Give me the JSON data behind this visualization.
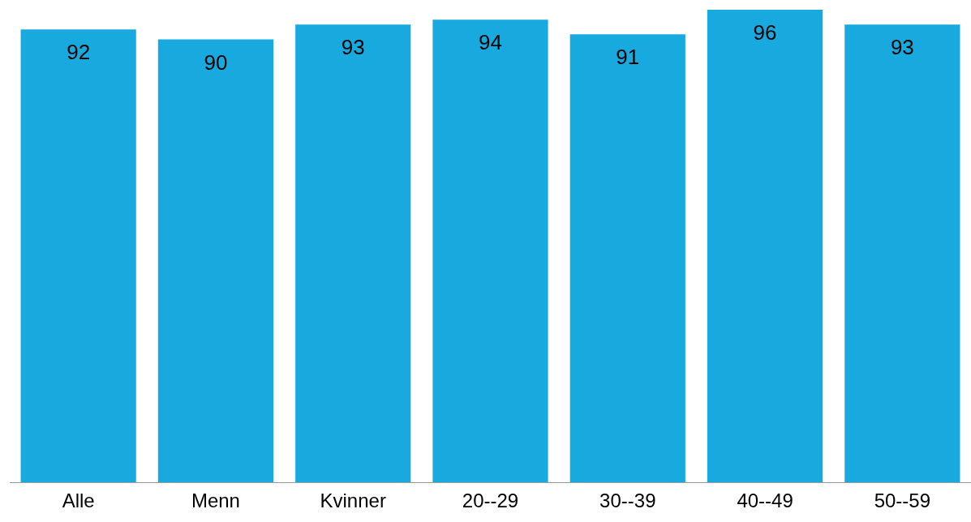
{
  "chart_data": {
    "type": "bar",
    "categories": [
      "Alle",
      "Menn",
      "Kvinner",
      "20--29",
      "30--39",
      "40--49",
      "50--59"
    ],
    "values": [
      92,
      90,
      93,
      94,
      91,
      96,
      93
    ],
    "color": "#18aade",
    "ylim": [
      0,
      96
    ],
    "data_labels": true,
    "legend": false
  }
}
